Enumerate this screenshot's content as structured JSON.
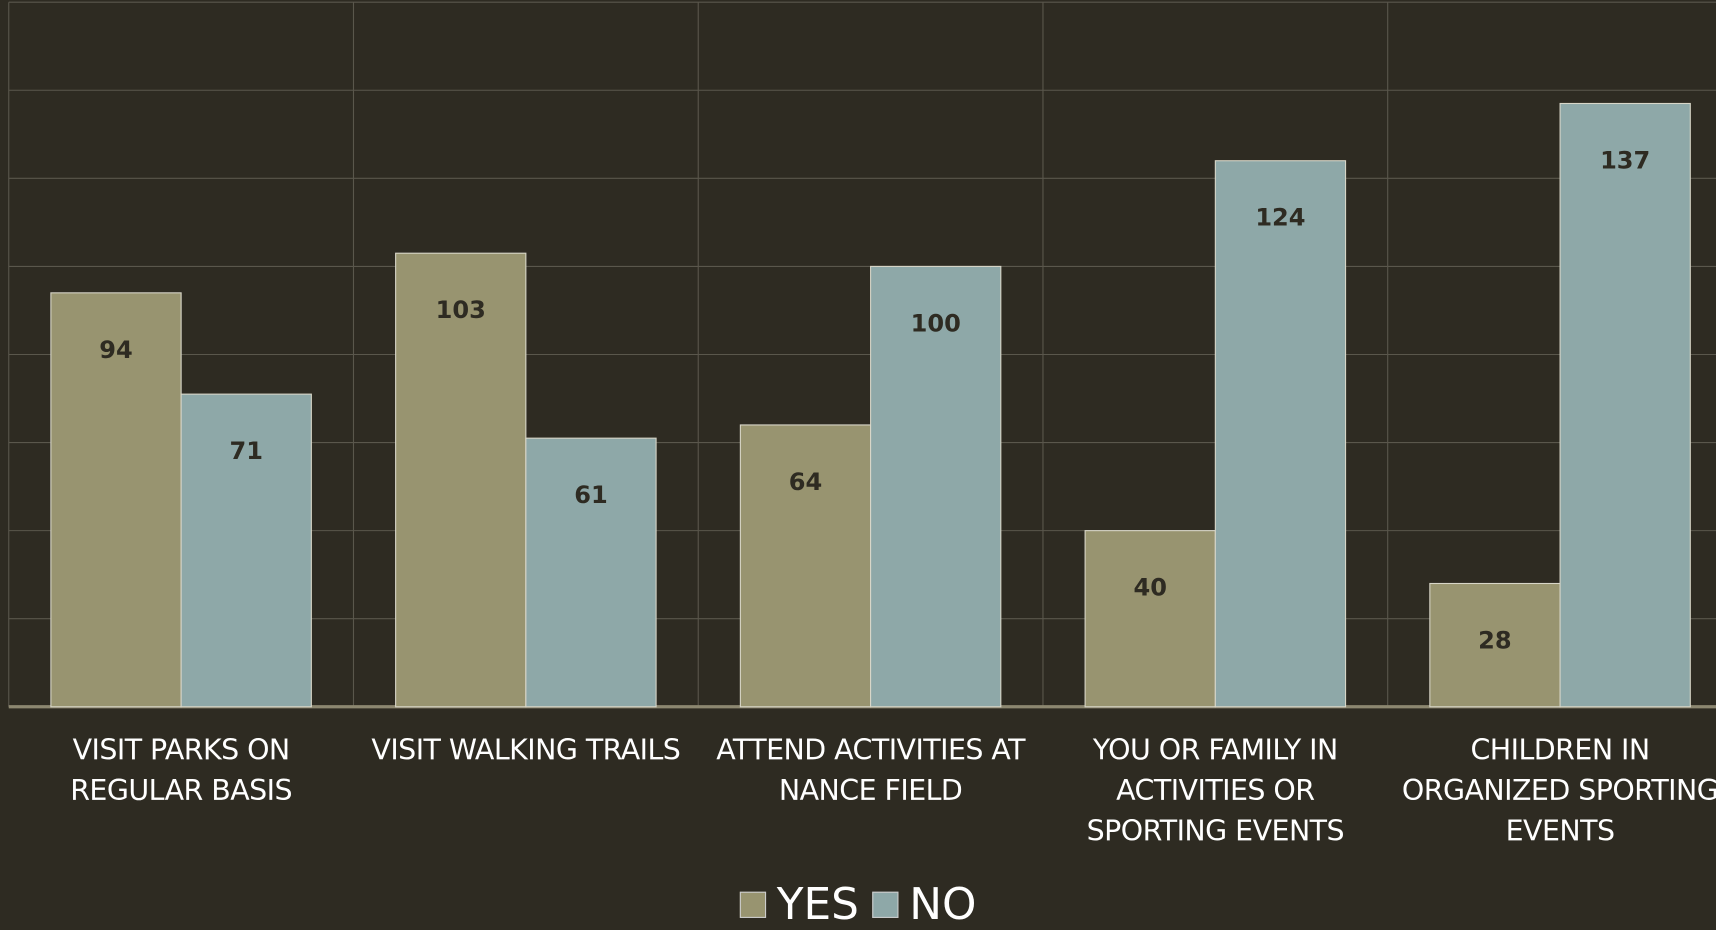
{
  "chart_data": {
    "type": "bar",
    "categories": [
      "VISIT PARKS ON REGULAR BASIS",
      "VISIT WALKING TRAILS",
      "ATTEND ACTIVITIES AT NANCE FIELD",
      "YOU OR FAMILY IN ACTIVITIES OR SPORTING EVENTS",
      "CHILDREN IN ORGANIZED SPORTING EVENTS"
    ],
    "series": [
      {
        "name": "YES",
        "color": "#989470",
        "values": [
          94,
          103,
          64,
          40,
          28
        ]
      },
      {
        "name": "NO",
        "color": "#8ea8a8",
        "values": [
          71,
          61,
          100,
          124,
          137
        ]
      }
    ],
    "ylim": [
      0,
      160
    ],
    "yticks": [
      0,
      20,
      40,
      60,
      80,
      100,
      120,
      140,
      160
    ],
    "grid": true,
    "legend": "bottom"
  }
}
